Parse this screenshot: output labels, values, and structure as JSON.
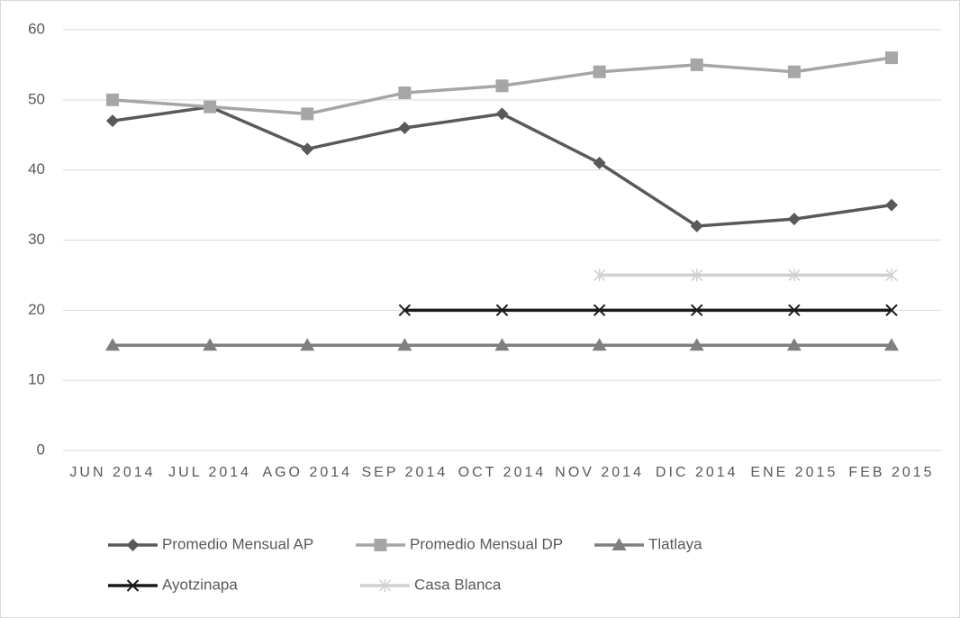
{
  "chart_data": {
    "type": "line",
    "categories": [
      "JUN 2014",
      "JUL 2014",
      "AGO 2014",
      "SEP 2014",
      "OCT 2014",
      "NOV 2014",
      "DIC 2014",
      "ENE 2015",
      "FEB 2015"
    ],
    "series": [
      {
        "name": "Promedio Mensual AP",
        "color": "#595959",
        "marker": "diamond",
        "values": [
          47,
          49,
          43,
          46,
          48,
          41,
          32,
          33,
          35
        ]
      },
      {
        "name": "Promedio Mensual DP",
        "color": "#a6a6a6",
        "marker": "square",
        "values": [
          50,
          49,
          48,
          51,
          52,
          54,
          55,
          54,
          56
        ]
      },
      {
        "name": "Tlatlaya",
        "color": "#7f7f7f",
        "marker": "triangle",
        "values": [
          15,
          15,
          15,
          15,
          15,
          15,
          15,
          15,
          15
        ]
      },
      {
        "name": "Ayotzinapa",
        "color": "#1a1a1a",
        "marker": "x",
        "values": [
          null,
          null,
          null,
          20,
          20,
          20,
          20,
          20,
          20
        ]
      },
      {
        "name": "Casa Blanca",
        "color": "#d0d0d0",
        "marker": "star",
        "values": [
          null,
          null,
          null,
          null,
          null,
          25,
          25,
          25,
          25
        ]
      }
    ],
    "ylim": [
      0,
      60
    ],
    "yticks": [
      0,
      10,
      20,
      30,
      40,
      50,
      60
    ],
    "grid": true,
    "legend": "bottom"
  }
}
